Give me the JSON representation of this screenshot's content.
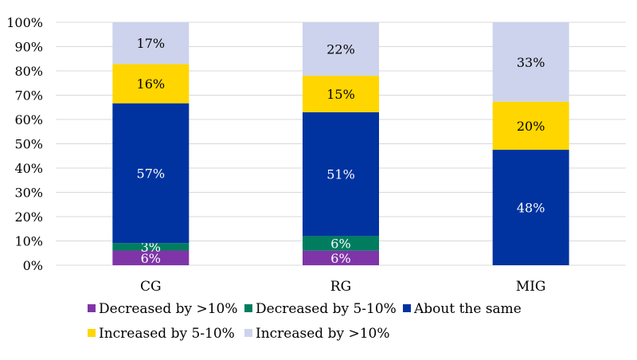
{
  "chart_data": {
    "type": "bar",
    "stacked": true,
    "percent_stacked": true,
    "categories": [
      "CG",
      "RG",
      "MIG"
    ],
    "series": [
      {
        "name": "Decreased by >10%",
        "color": "#7F35A8",
        "label_color": "#FFFFFF",
        "values": [
          6,
          6,
          0
        ]
      },
      {
        "name": "Decreased by 5-10%",
        "color": "#007D5F",
        "label_color": "#FFFFFF",
        "values": [
          3,
          6,
          0
        ]
      },
      {
        "name": "About the same",
        "color": "#0033A0",
        "label_color": "#FFFFFF",
        "values": [
          57,
          51,
          48
        ]
      },
      {
        "name": "Increased by 5-10%",
        "color": "#FFD600",
        "label_color": "#000000",
        "values": [
          16,
          15,
          20
        ]
      },
      {
        "name": "Increased by >10%",
        "color": "#CDD3EC",
        "label_color": "#000000",
        "values": [
          17,
          22,
          33
        ]
      }
    ],
    "ylim": [
      0,
      100
    ],
    "yticks": [
      "0%",
      "10%",
      "20%",
      "30%",
      "40%",
      "50%",
      "60%",
      "70%",
      "80%",
      "90%",
      "100%"
    ],
    "grid": true,
    "legend_position": "bottom",
    "title": "",
    "xlabel": "",
    "ylabel": ""
  }
}
